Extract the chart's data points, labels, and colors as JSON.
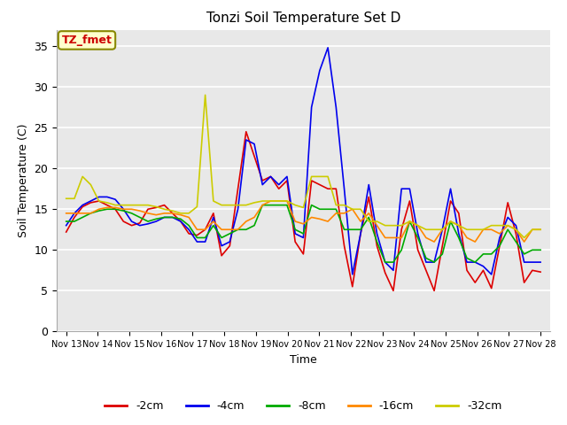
{
  "title": "Tonzi Soil Temperature Set D",
  "xlabel": "Time",
  "ylabel": "Soil Temperature (C)",
  "annotation": "TZ_fmet",
  "ylim": [
    0,
    37
  ],
  "yticks": [
    0,
    5,
    10,
    15,
    20,
    25,
    30,
    35
  ],
  "x_tick_labels": [
    "Nov 13",
    "Nov 14",
    "Nov 15",
    "Nov 16",
    "Nov 17",
    "Nov 18",
    "Nov 19",
    "Nov 20",
    "Nov 21",
    "Nov 22",
    "Nov 23",
    "Nov 24",
    "Nov 25",
    "Nov 26",
    "Nov 27",
    "Nov 28"
  ],
  "fig_facecolor": "#ffffff",
  "axes_facecolor": "#e8e8e8",
  "grid_color": "#ffffff",
  "series_order": [
    "-2cm",
    "-4cm",
    "-8cm",
    "-16cm",
    "-32cm"
  ],
  "series": {
    "-2cm": {
      "color": "#dd0000",
      "data": [
        12.2,
        14.0,
        15.3,
        15.8,
        16.0,
        15.5,
        15.0,
        13.5,
        13.0,
        13.3,
        15.0,
        15.2,
        15.5,
        14.5,
        13.5,
        12.0,
        11.8,
        12.5,
        14.5,
        9.3,
        10.5,
        17.5,
        24.5,
        21.5,
        18.5,
        19.0,
        17.5,
        18.5,
        11.0,
        9.5,
        18.5,
        18.0,
        17.5,
        17.5,
        10.5,
        5.5,
        12.0,
        16.5,
        10.5,
        7.2,
        5.0,
        12.5,
        16.0,
        10.0,
        7.5,
        5.0,
        10.5,
        16.0,
        14.5,
        7.5,
        6.0,
        7.5,
        5.3,
        10.5,
        15.8,
        12.0,
        6.0,
        7.5,
        7.3
      ]
    },
    "-4cm": {
      "color": "#0000ee",
      "data": [
        13.0,
        14.5,
        15.5,
        16.0,
        16.5,
        16.5,
        16.2,
        15.0,
        13.5,
        13.0,
        13.2,
        13.5,
        14.0,
        14.0,
        13.5,
        12.5,
        11.0,
        11.0,
        14.0,
        10.5,
        11.0,
        15.0,
        23.5,
        23.0,
        18.0,
        19.0,
        18.0,
        19.0,
        12.0,
        11.5,
        27.5,
        32.0,
        34.8,
        27.5,
        17.5,
        7.0,
        12.0,
        18.0,
        12.0,
        8.5,
        7.5,
        17.5,
        17.5,
        12.0,
        8.5,
        8.5,
        12.5,
        17.5,
        12.0,
        8.5,
        8.5,
        8.0,
        7.0,
        11.5,
        14.0,
        13.0,
        8.5,
        8.5,
        8.5
      ]
    },
    "-8cm": {
      "color": "#00aa00",
      "data": [
        13.5,
        13.5,
        14.0,
        14.5,
        14.8,
        15.0,
        15.0,
        14.8,
        14.5,
        14.0,
        13.5,
        13.8,
        14.0,
        14.0,
        13.8,
        13.0,
        11.5,
        11.5,
        13.0,
        11.5,
        12.0,
        12.5,
        12.5,
        13.0,
        15.5,
        15.5,
        15.5,
        15.5,
        12.5,
        12.0,
        15.5,
        15.0,
        15.0,
        15.0,
        12.5,
        12.5,
        12.5,
        14.0,
        11.0,
        8.5,
        8.5,
        10.0,
        13.5,
        11.5,
        9.0,
        8.5,
        9.5,
        13.5,
        11.5,
        9.0,
        8.5,
        9.5,
        9.5,
        10.5,
        12.5,
        11.0,
        9.5,
        10.0,
        10.0
      ]
    },
    "-16cm": {
      "color": "#ff8800",
      "data": [
        14.5,
        14.5,
        14.5,
        14.5,
        15.0,
        15.2,
        15.2,
        15.0,
        15.0,
        14.8,
        14.5,
        14.3,
        14.5,
        14.5,
        14.3,
        14.0,
        12.5,
        12.5,
        13.5,
        12.5,
        12.5,
        12.5,
        13.5,
        14.0,
        15.5,
        16.0,
        16.0,
        16.0,
        13.5,
        13.2,
        14.0,
        13.8,
        13.5,
        14.5,
        14.5,
        15.0,
        13.5,
        14.5,
        13.0,
        11.5,
        11.5,
        11.5,
        13.5,
        13.0,
        11.5,
        11.0,
        12.5,
        13.5,
        13.0,
        11.5,
        11.0,
        12.5,
        12.5,
        12.0,
        13.0,
        12.5,
        11.0,
        12.5,
        12.5
      ]
    },
    "-32cm": {
      "color": "#cccc00",
      "data": [
        16.3,
        16.3,
        19.0,
        18.0,
        16.0,
        15.8,
        15.5,
        15.5,
        15.5,
        15.5,
        15.5,
        15.3,
        15.0,
        14.8,
        14.5,
        14.5,
        15.3,
        29.0,
        16.0,
        15.5,
        15.5,
        15.5,
        15.5,
        15.8,
        16.0,
        16.0,
        16.0,
        16.0,
        15.5,
        15.2,
        19.0,
        19.0,
        19.0,
        15.5,
        15.5,
        15.0,
        15.0,
        13.5,
        13.5,
        13.0,
        13.0,
        13.0,
        13.5,
        13.0,
        12.5,
        12.5,
        12.5,
        13.5,
        13.0,
        12.5,
        12.5,
        12.5,
        13.0,
        13.0,
        13.0,
        12.5,
        11.5,
        12.5,
        12.5
      ]
    }
  }
}
